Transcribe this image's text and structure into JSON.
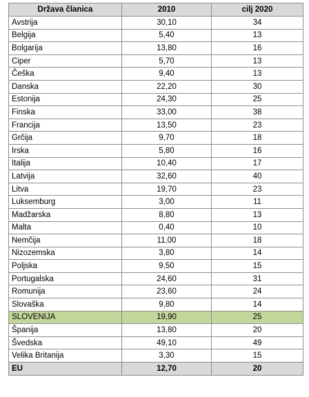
{
  "table": {
    "headers": [
      "Država članica",
      "2010",
      "cilj 2020"
    ],
    "rows": [
      {
        "country": "Avstrija",
        "v2010": "30,10",
        "target2020": "34"
      },
      {
        "country": "Belgija",
        "v2010": "5,40",
        "target2020": "13"
      },
      {
        "country": "Bolgarija",
        "v2010": "13,80",
        "target2020": "16"
      },
      {
        "country": "Ciper",
        "v2010": "5,70",
        "target2020": "13"
      },
      {
        "country": "Češka",
        "v2010": "9,40",
        "target2020": "13"
      },
      {
        "country": "Danska",
        "v2010": "22,20",
        "target2020": "30"
      },
      {
        "country": "Estonija",
        "v2010": "24,30",
        "target2020": "25"
      },
      {
        "country": "Finska",
        "v2010": "33,00",
        "target2020": "38"
      },
      {
        "country": "Francija",
        "v2010": "13,50",
        "target2020": "23"
      },
      {
        "country": "Grčija",
        "v2010": "9,70",
        "target2020": "18"
      },
      {
        "country": "Irska",
        "v2010": "5,80",
        "target2020": "16"
      },
      {
        "country": "Italija",
        "v2010": "10,40",
        "target2020": "17"
      },
      {
        "country": "Latvija",
        "v2010": "32,60",
        "target2020": "40"
      },
      {
        "country": "Litva",
        "v2010": "19,70",
        "target2020": "23"
      },
      {
        "country": "Luksemburg",
        "v2010": "3,00",
        "target2020": "11"
      },
      {
        "country": "Madžarska",
        "v2010": "8,80",
        "target2020": "13"
      },
      {
        "country": "Malta",
        "v2010": "0,40",
        "target2020": "10"
      },
      {
        "country": "Nemčija",
        "v2010": "11,00",
        "target2020": "18"
      },
      {
        "country": "Nizozemska",
        "v2010": "3,80",
        "target2020": "14"
      },
      {
        "country": "Poljska",
        "v2010": "9,50",
        "target2020": "15"
      },
      {
        "country": "Portugalska",
        "v2010": "24,60",
        "target2020": "31"
      },
      {
        "country": "Romunija",
        "v2010": "23,60",
        "target2020": "24"
      },
      {
        "country": "Slovaška",
        "v2010": "9,80",
        "target2020": "14"
      },
      {
        "country": "SLOVENIJA",
        "v2010": "19,90",
        "target2020": "25",
        "highlight": true
      },
      {
        "country": "Španija",
        "v2010": "13,80",
        "target2020": "20"
      },
      {
        "country": "Švedska",
        "v2010": "49,10",
        "target2020": "49"
      },
      {
        "country": "Velika Britanija",
        "v2010": "3,30",
        "target2020": "15"
      }
    ],
    "total": {
      "country": "EU",
      "v2010": "12,70",
      "target2020": "20"
    }
  },
  "colors": {
    "header_bg": "#d9d9d9",
    "highlight_bg": "#c4d79b",
    "total_bg": "#d9d9d9",
    "border": "#8c8c8c"
  }
}
